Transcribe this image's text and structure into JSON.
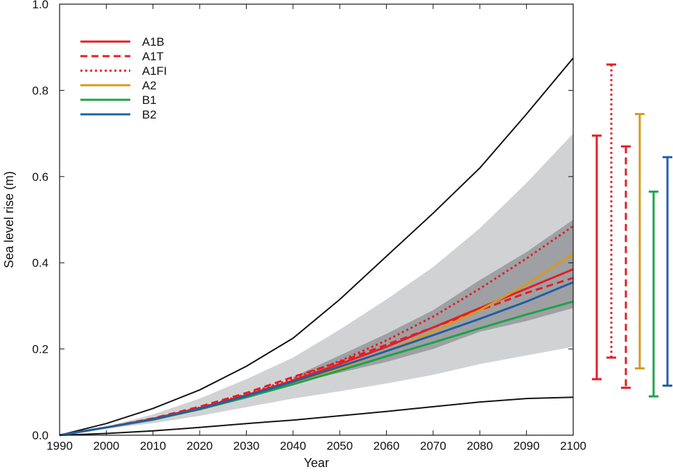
{
  "chart_data": {
    "type": "line",
    "title": "",
    "xlabel": "Year",
    "ylabel": "Sea level rise (m)",
    "xlim": [
      1990,
      2100
    ],
    "ylim": [
      0.0,
      1.0
    ],
    "x_ticks": [
      "1990",
      "2000",
      "2010",
      "2020",
      "2030",
      "2040",
      "2050",
      "2060",
      "2070",
      "2080",
      "2090",
      "2100"
    ],
    "y_ticks": [
      "0.0",
      "0.2",
      "0.4",
      "0.6",
      "0.8",
      "1.0"
    ],
    "grid": false,
    "legend": {
      "placement": "top-left"
    },
    "series": [
      {
        "name": "A1B",
        "color": "#e31e24",
        "dash": "solid",
        "x": [
          1990,
          2000,
          2010,
          2020,
          2030,
          2040,
          2050,
          2060,
          2070,
          2080,
          2090,
          2100
        ],
        "y": [
          0.0,
          0.018,
          0.038,
          0.063,
          0.093,
          0.127,
          0.165,
          0.205,
          0.25,
          0.295,
          0.34,
          0.385
        ]
      },
      {
        "name": "A1T",
        "color": "#e31e24",
        "dash": "dashed",
        "x": [
          1990,
          2000,
          2010,
          2020,
          2030,
          2040,
          2050,
          2060,
          2070,
          2080,
          2090,
          2100
        ],
        "y": [
          0.0,
          0.018,
          0.039,
          0.066,
          0.098,
          0.135,
          0.17,
          0.21,
          0.25,
          0.29,
          0.33,
          0.365
        ]
      },
      {
        "name": "A1FI",
        "color": "#e31e24",
        "dash": "dotted",
        "x": [
          1990,
          2000,
          2010,
          2020,
          2030,
          2040,
          2050,
          2060,
          2070,
          2080,
          2090,
          2100
        ],
        "y": [
          0.0,
          0.018,
          0.038,
          0.064,
          0.095,
          0.131,
          0.172,
          0.22,
          0.275,
          0.34,
          0.41,
          0.485
        ]
      },
      {
        "name": "A2",
        "color": "#d69a1f",
        "dash": "solid",
        "x": [
          1990,
          2000,
          2010,
          2020,
          2030,
          2040,
          2050,
          2060,
          2070,
          2080,
          2090,
          2100
        ],
        "y": [
          0.0,
          0.018,
          0.036,
          0.06,
          0.088,
          0.12,
          0.155,
          0.195,
          0.24,
          0.29,
          0.35,
          0.42
        ]
      },
      {
        "name": "B1",
        "color": "#1aa34a",
        "dash": "solid",
        "x": [
          1990,
          2000,
          2010,
          2020,
          2030,
          2040,
          2050,
          2060,
          2070,
          2080,
          2090,
          2100
        ],
        "y": [
          0.0,
          0.018,
          0.036,
          0.06,
          0.088,
          0.118,
          0.15,
          0.183,
          0.215,
          0.248,
          0.28,
          0.31
        ]
      },
      {
        "name": "B2",
        "color": "#1f5fa8",
        "dash": "solid",
        "x": [
          1990,
          2000,
          2010,
          2020,
          2030,
          2040,
          2050,
          2060,
          2070,
          2080,
          2090,
          2100
        ],
        "y": [
          0.0,
          0.018,
          0.037,
          0.061,
          0.091,
          0.124,
          0.159,
          0.195,
          0.232,
          0.27,
          0.31,
          0.355
        ]
      }
    ],
    "envelope_lines": [
      {
        "color": "#111111",
        "x": [
          1990,
          2000,
          2010,
          2020,
          2030,
          2040,
          2050,
          2060,
          2070,
          2080,
          2090,
          2100
        ],
        "y": [
          0.0,
          0.027,
          0.062,
          0.105,
          0.16,
          0.225,
          0.315,
          0.415,
          0.515,
          0.62,
          0.745,
          0.875
        ]
      },
      {
        "color": "#111111",
        "x": [
          1990,
          2000,
          2010,
          2020,
          2030,
          2040,
          2050,
          2060,
          2070,
          2080,
          2090,
          2100
        ],
        "y": [
          0.0,
          0.004,
          0.01,
          0.018,
          0.027,
          0.035,
          0.045,
          0.055,
          0.066,
          0.077,
          0.085,
          0.088
        ]
      }
    ],
    "outer_band": {
      "color": "#d1d2d4",
      "x": [
        1990,
        2000,
        2010,
        2020,
        2030,
        2040,
        2050,
        2060,
        2070,
        2080,
        2090,
        2100
      ],
      "upper": [
        0.0,
        0.02,
        0.048,
        0.085,
        0.13,
        0.18,
        0.245,
        0.315,
        0.39,
        0.48,
        0.585,
        0.7
      ],
      "lower": [
        0.0,
        0.015,
        0.028,
        0.045,
        0.065,
        0.085,
        0.102,
        0.12,
        0.14,
        0.165,
        0.185,
        0.205
      ]
    },
    "inner_band": {
      "color": "#9fa0a3",
      "x": [
        2040,
        2050,
        2060,
        2070,
        2080,
        2090,
        2100
      ],
      "upper": [
        0.135,
        0.185,
        0.235,
        0.29,
        0.36,
        0.425,
        0.5
      ],
      "lower": [
        0.12,
        0.145,
        0.17,
        0.2,
        0.24,
        0.265,
        0.295
      ]
    },
    "range_bars": [
      {
        "series": "A1B",
        "color": "#e31e24",
        "dash": "solid",
        "low": 0.13,
        "high": 0.695
      },
      {
        "series": "A1FI",
        "color": "#e31e24",
        "dash": "dotted",
        "low": 0.18,
        "high": 0.86
      },
      {
        "series": "A1T",
        "color": "#e31e24",
        "dash": "dashed",
        "low": 0.11,
        "high": 0.67
      },
      {
        "series": "A2",
        "color": "#d69a1f",
        "dash": "solid",
        "low": 0.155,
        "high": 0.745
      },
      {
        "series": "B1",
        "color": "#1aa34a",
        "dash": "solid",
        "low": 0.09,
        "high": 0.565
      },
      {
        "series": "B2",
        "color": "#1f5fa8",
        "dash": "solid",
        "low": 0.115,
        "high": 0.645
      }
    ]
  }
}
